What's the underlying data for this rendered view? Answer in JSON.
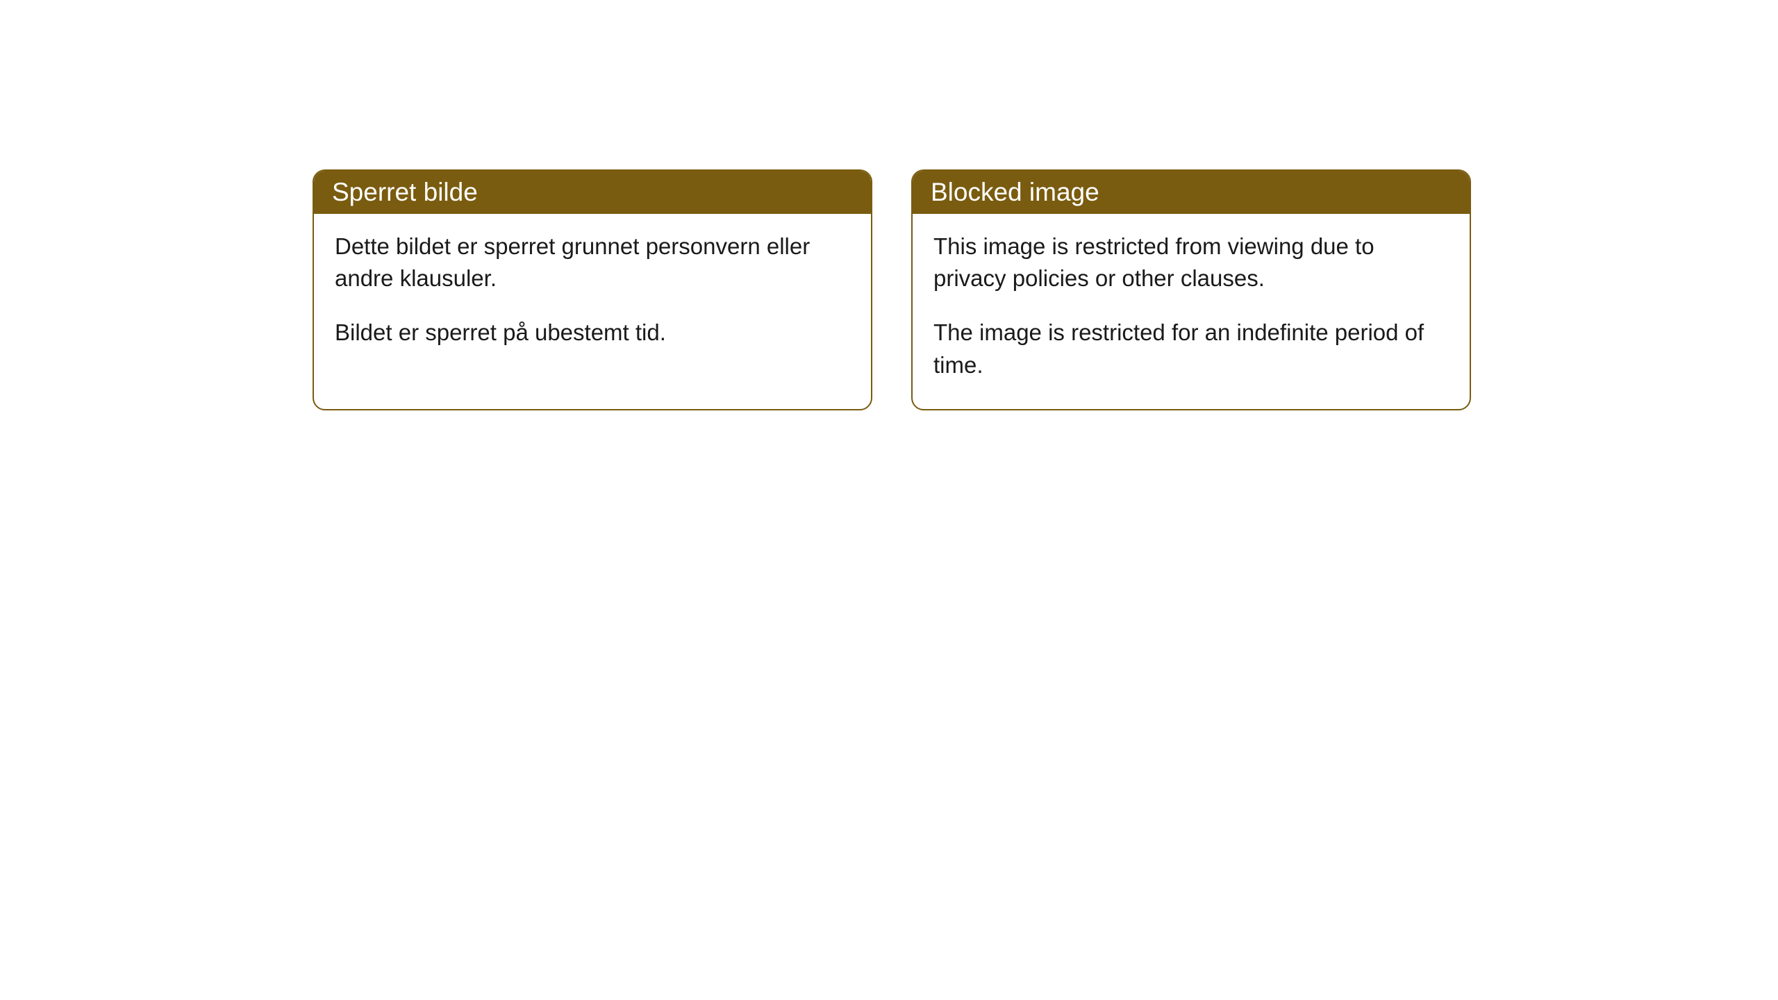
{
  "cards": [
    {
      "title": "Sperret bilde",
      "paragraph1": "Dette bildet er sperret grunnet personvern eller andre klausuler.",
      "paragraph2": "Bildet er sperret på ubestemt tid."
    },
    {
      "title": "Blocked image",
      "paragraph1": "This image is restricted from viewing due to privacy policies or other clauses.",
      "paragraph2": "The image is restricted for an indefinite period of time."
    }
  ],
  "styling": {
    "header_background": "#7a5c10",
    "header_text_color": "#ffffff",
    "card_border_color": "#7a5c10",
    "card_background": "#ffffff",
    "body_text_color": "#1a1a1a",
    "page_background": "#ffffff",
    "border_radius": 18,
    "header_fontsize": 37,
    "body_fontsize": 33
  }
}
